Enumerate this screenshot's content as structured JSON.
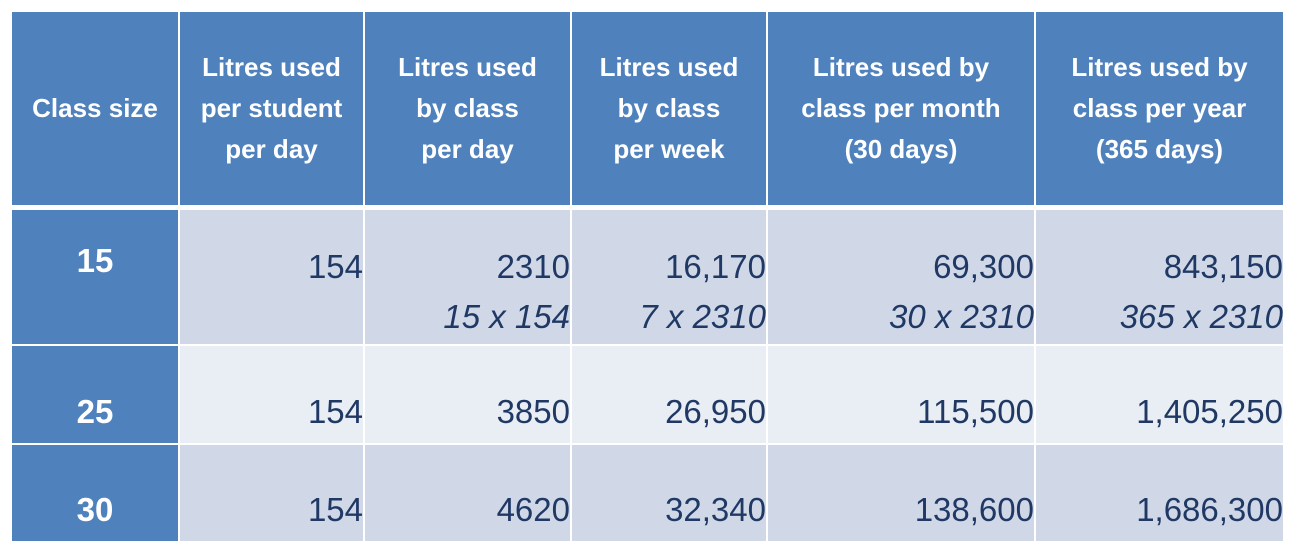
{
  "table": {
    "header": [
      "Class size",
      "Litres used\nper student\nper day",
      "Litres used\nby class\nper day",
      "Litres used\nby class\nper week",
      "Litres used by\nclass per month\n(30 days)",
      "Litres used by\nclass per year\n(365 days)"
    ],
    "rows": [
      {
        "class_size": "15",
        "cells": [
          {
            "value": "154"
          },
          {
            "value": "2310",
            "formula": "15 x 154"
          },
          {
            "value": "16,170",
            "formula": "7 x 2310"
          },
          {
            "value": "69,300",
            "formula": "30 x 2310"
          },
          {
            "value": "843,150",
            "formula": "365 x 2310"
          }
        ]
      },
      {
        "class_size": "25",
        "cells": [
          {
            "value": "154"
          },
          {
            "value": "3850"
          },
          {
            "value": "26,950"
          },
          {
            "value": "115,500"
          },
          {
            "value": "1,405,250"
          }
        ]
      },
      {
        "class_size": "30",
        "cells": [
          {
            "value": "154"
          },
          {
            "value": "4620"
          },
          {
            "value": "32,340"
          },
          {
            "value": "138,600"
          },
          {
            "value": "1,686,300"
          }
        ]
      }
    ]
  }
}
